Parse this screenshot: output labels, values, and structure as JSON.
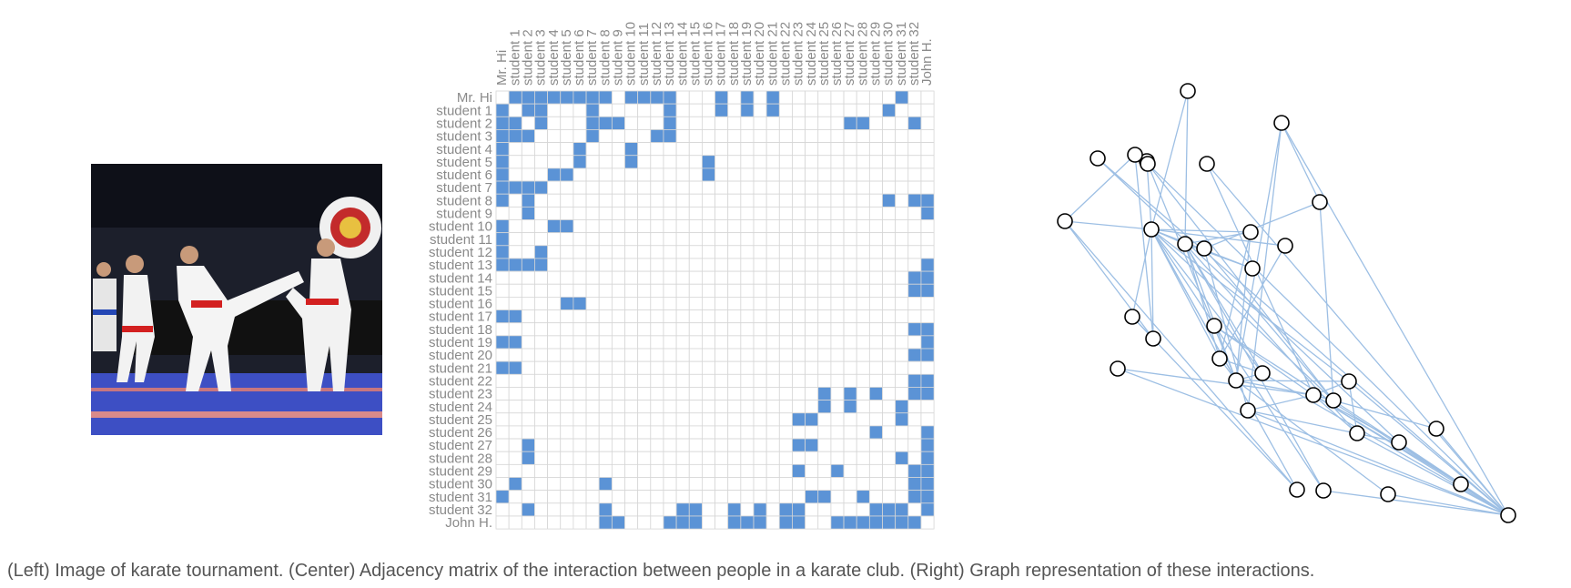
{
  "figure": {
    "caption": "(Left) Image of karate tournament. (Center) Adjacency matrix of the interaction between people in a karate club. (Right) Graph representation of these interactions.",
    "colors": {
      "filled": "#5b93d6",
      "grid": "#d6d6d6",
      "edge": "#9dbfe4",
      "node_stroke": "#000000",
      "label": "#8a8a8a"
    }
  },
  "photo": {
    "description_icon": "karate-photo",
    "colors": {
      "mat": "#3d4fc4",
      "background": "#1c1f2b",
      "gi": "#f2f2f2",
      "belt_red": "#d32020"
    }
  },
  "matrix": {
    "labels": [
      "Mr. Hi",
      "student 1",
      "student 2",
      "student 3",
      "student 4",
      "student 5",
      "student 6",
      "student 7",
      "student 8",
      "student 9",
      "student 10",
      "student 11",
      "student 12",
      "student 13",
      "student 14",
      "student 15",
      "student 16",
      "student 17",
      "student 18",
      "student 19",
      "student 20",
      "student 21",
      "student 22",
      "student 23",
      "student 24",
      "student 25",
      "student 26",
      "student 27",
      "student 28",
      "student 29",
      "student 30",
      "student 31",
      "student 32",
      "John H."
    ],
    "edges": [
      [
        0,
        1
      ],
      [
        0,
        2
      ],
      [
        0,
        3
      ],
      [
        0,
        4
      ],
      [
        0,
        5
      ],
      [
        0,
        6
      ],
      [
        0,
        7
      ],
      [
        0,
        8
      ],
      [
        0,
        10
      ],
      [
        0,
        11
      ],
      [
        0,
        12
      ],
      [
        0,
        13
      ],
      [
        0,
        17
      ],
      [
        0,
        19
      ],
      [
        0,
        21
      ],
      [
        0,
        31
      ],
      [
        1,
        2
      ],
      [
        1,
        3
      ],
      [
        1,
        7
      ],
      [
        1,
        13
      ],
      [
        1,
        17
      ],
      [
        1,
        19
      ],
      [
        1,
        21
      ],
      [
        1,
        30
      ],
      [
        2,
        3
      ],
      [
        2,
        7
      ],
      [
        2,
        8
      ],
      [
        2,
        9
      ],
      [
        2,
        13
      ],
      [
        2,
        27
      ],
      [
        2,
        28
      ],
      [
        2,
        32
      ],
      [
        3,
        7
      ],
      [
        3,
        12
      ],
      [
        3,
        13
      ],
      [
        4,
        6
      ],
      [
        4,
        10
      ],
      [
        5,
        6
      ],
      [
        5,
        10
      ],
      [
        5,
        16
      ],
      [
        6,
        16
      ],
      [
        8,
        30
      ],
      [
        8,
        32
      ],
      [
        8,
        33
      ],
      [
        9,
        33
      ],
      [
        13,
        33
      ],
      [
        14,
        32
      ],
      [
        14,
        33
      ],
      [
        15,
        32
      ],
      [
        15,
        33
      ],
      [
        18,
        32
      ],
      [
        18,
        33
      ],
      [
        19,
        33
      ],
      [
        20,
        32
      ],
      [
        20,
        33
      ],
      [
        22,
        32
      ],
      [
        22,
        33
      ],
      [
        23,
        25
      ],
      [
        23,
        27
      ],
      [
        23,
        29
      ],
      [
        23,
        32
      ],
      [
        23,
        33
      ],
      [
        24,
        25
      ],
      [
        24,
        27
      ],
      [
        24,
        31
      ],
      [
        25,
        31
      ],
      [
        26,
        29
      ],
      [
        26,
        33
      ],
      [
        27,
        33
      ],
      [
        28,
        31
      ],
      [
        28,
        33
      ],
      [
        29,
        32
      ],
      [
        29,
        33
      ],
      [
        30,
        32
      ],
      [
        30,
        33
      ],
      [
        31,
        32
      ],
      [
        31,
        33
      ],
      [
        32,
        33
      ]
    ]
  }
}
